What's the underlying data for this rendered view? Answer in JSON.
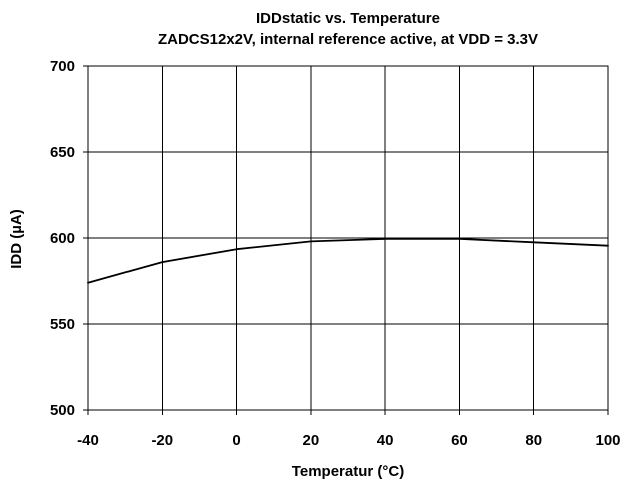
{
  "chart_data": {
    "type": "line",
    "title": "IDDstatic vs. Temperature",
    "subtitle": "ZADCS12x2V, internal reference active, at VDD = 3.3V",
    "xlabel": "Temperatur (°C)",
    "ylabel": "IDD (µA)",
    "xlim": [
      -40,
      100
    ],
    "ylim": [
      500,
      700
    ],
    "x_ticks": [
      -40,
      -20,
      0,
      20,
      40,
      60,
      80,
      100
    ],
    "y_ticks": [
      500,
      550,
      600,
      650,
      700
    ],
    "x_tick_labels": [
      "-40",
      "-20",
      "0",
      "20",
      "40",
      "60",
      "80",
      "100"
    ],
    "y_tick_labels": [
      "500",
      "550",
      "600",
      "650",
      "700"
    ],
    "grid": true,
    "legend": "none",
    "series": [
      {
        "x": [
          -40,
          -20,
          0,
          20,
          40,
          60,
          80,
          100
        ],
        "y": [
          574,
          586,
          593.5,
          598,
          599.5,
          599.5,
          597.5,
          595.5
        ],
        "color": "#000000"
      }
    ]
  }
}
